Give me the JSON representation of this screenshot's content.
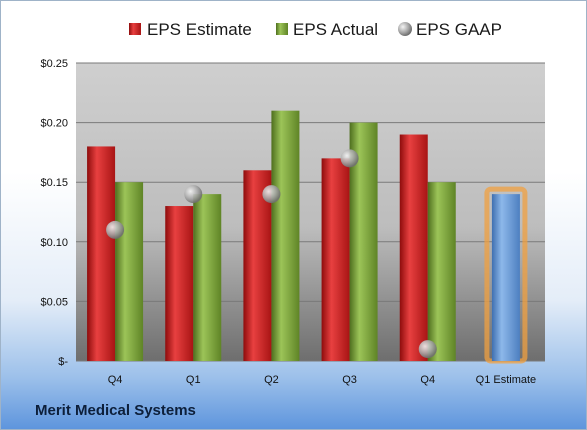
{
  "company": "Merit Medical Systems",
  "colors": {
    "estimate": "#cc1f1f",
    "actual": "#7ea83a",
    "gaap": "#b8b8b8",
    "forecast": "#6f9fd8",
    "forecast_glow": "#f0a040"
  },
  "chart_data": {
    "type": "bar",
    "categories": [
      "Q4",
      "Q1",
      "Q2",
      "Q3",
      "Q4",
      "Q1 Estimate"
    ],
    "series": [
      {
        "name": "EPS Estimate",
        "values": [
          0.18,
          0.13,
          0.16,
          0.17,
          0.19,
          null
        ]
      },
      {
        "name": "EPS Actual",
        "values": [
          0.15,
          0.14,
          0.21,
          0.2,
          0.15,
          0.14
        ]
      },
      {
        "name": "EPS GAAP",
        "values": [
          0.11,
          0.14,
          0.14,
          0.17,
          0.01,
          null
        ]
      }
    ],
    "ylim": [
      0,
      0.25
    ],
    "yticks": [
      0,
      0.05,
      0.1,
      0.15,
      0.2,
      0.25
    ],
    "ytick_labels": [
      "$-",
      "$0.05",
      "$0.10",
      "$0.15",
      "$0.20",
      "$0.25"
    ],
    "legend": [
      "EPS Estimate",
      "EPS Actual",
      "EPS GAAP"
    ],
    "legend_position": "top",
    "grid": true
  }
}
